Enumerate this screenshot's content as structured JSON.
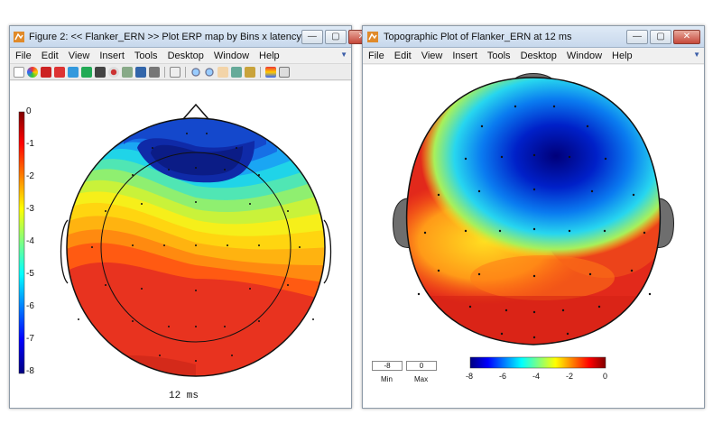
{
  "window1": {
    "title": "Figure 2: << Flanker_ERN >>  Plot ERP map by Bins x latency",
    "menu": [
      "File",
      "Edit",
      "View",
      "Insert",
      "Tools",
      "Desktop",
      "Window",
      "Help"
    ],
    "colorbar_ticks": [
      "0",
      "-1",
      "-2",
      "-3",
      "-4",
      "-5",
      "-6",
      "-7",
      "-8"
    ],
    "latency_label": "12 ms"
  },
  "window2": {
    "title": "Topographic Plot of Flanker_ERN at 12 ms",
    "menu": [
      "File",
      "Edit",
      "View",
      "Insert",
      "Tools",
      "Desktop",
      "Window",
      "Help"
    ],
    "min_value": "-8",
    "max_value": "0",
    "min_label": "Min",
    "max_label": "Max",
    "colorbar_ticks": [
      "-8",
      "-6",
      "-4",
      "-2",
      "0"
    ]
  },
  "window_buttons": {
    "minimize": "—",
    "maximize": "▢",
    "close": "✕"
  },
  "colors": {
    "titlebar": "#c7d8ec",
    "accent": "#3b5ea8"
  }
}
